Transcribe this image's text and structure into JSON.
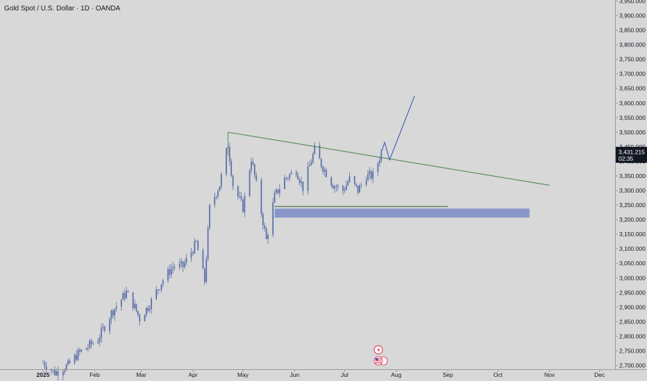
{
  "header": {
    "symbol_title": "Gold Spot / U.S. Dollar · 1D · OANDA"
  },
  "price_scale": {
    "current_price": "3,431.215",
    "countdown": "02:35"
  },
  "colors": {
    "background": "#d8d8d8",
    "candle_body": "#5b6fa8",
    "trendline": "#4c8a4c",
    "support_line": "#2e5a2e",
    "zone_fill": "#7b8bc8",
    "projection": "#3a56b8",
    "price_tag_bg": "#131722"
  },
  "chart_data": {
    "type": "candlestick",
    "title": "Gold Spot / U.S. Dollar · 1D · OANDA",
    "x_axis": {
      "tick_labels": [
        "2025",
        "Feb",
        "Mar",
        "Apr",
        "May",
        "Jun",
        "Jul",
        "Aug",
        "Sep",
        "Oct",
        "Nov",
        "Dec"
      ],
      "tick_dates": [
        "2025-01-01",
        "2025-02-01",
        "2025-03-01",
        "2025-04-01",
        "2025-05-01",
        "2025-06-01",
        "2025-07-01",
        "2025-08-01",
        "2025-09-01",
        "2025-10-01",
        "2025-11-01",
        "2025-12-01"
      ]
    },
    "y_axis": {
      "range": [
        2700,
        3950
      ],
      "tick_values": [
        2700,
        2750,
        2800,
        2850,
        2900,
        2950,
        3000,
        3050,
        3100,
        3150,
        3200,
        3250,
        3300,
        3350,
        3400,
        3450,
        3500,
        3550,
        3600,
        3650,
        3700,
        3750,
        3800,
        3850,
        3900,
        3950
      ],
      "tick_labels": [
        "2,700.000",
        "2,750.000",
        "2,800.000",
        "2,850.000",
        "2,900.000",
        "2,950.000",
        "3,000.000",
        "3,050.000",
        "3,100.000",
        "3,150.000",
        "3,200.000",
        "3,250.000",
        "3,300.000",
        "3,350.000",
        "3,400.000",
        "3,450.000",
        "3,500.000",
        "3,550.000",
        "3,600.000",
        "3,650.000",
        "3,700.000",
        "3,750.000",
        "3,800.000",
        "3,850.000",
        "3,900.000",
        "3,950.000"
      ]
    },
    "closes": [
      {
        "date": "2025-01-01",
        "close": 2710
      },
      {
        "date": "2025-01-08",
        "close": 2675
      },
      {
        "date": "2025-01-16",
        "close": 2700
      },
      {
        "date": "2025-01-22",
        "close": 2740
      },
      {
        "date": "2025-02-03",
        "close": 2790
      },
      {
        "date": "2025-02-11",
        "close": 2880
      },
      {
        "date": "2025-02-20",
        "close": 2950
      },
      {
        "date": "2025-02-25",
        "close": 2900
      },
      {
        "date": "2025-02-28",
        "close": 2860
      },
      {
        "date": "2025-03-06",
        "close": 2910
      },
      {
        "date": "2025-03-13",
        "close": 2985
      },
      {
        "date": "2025-03-20",
        "close": 3040
      },
      {
        "date": "2025-03-26",
        "close": 3040
      },
      {
        "date": "2025-04-03",
        "close": 3120
      },
      {
        "date": "2025-04-08",
        "close": 2990
      },
      {
        "date": "2025-04-11",
        "close": 3240
      },
      {
        "date": "2025-04-17",
        "close": 3320
      },
      {
        "date": "2025-04-22",
        "close": 3460
      },
      {
        "date": "2025-04-25",
        "close": 3320
      },
      {
        "date": "2025-05-01",
        "close": 3240
      },
      {
        "date": "2025-05-06",
        "close": 3410
      },
      {
        "date": "2025-05-09",
        "close": 3320
      },
      {
        "date": "2025-05-15",
        "close": 3130
      },
      {
        "date": "2025-05-20",
        "close": 3280
      },
      {
        "date": "2025-05-26",
        "close": 3340
      },
      {
        "date": "2025-06-02",
        "close": 3370
      },
      {
        "date": "2025-06-06",
        "close": 3310
      },
      {
        "date": "2025-06-13",
        "close": 3440
      },
      {
        "date": "2025-06-17",
        "close": 3390
      },
      {
        "date": "2025-06-24",
        "close": 3320
      },
      {
        "date": "2025-06-30",
        "close": 3300
      },
      {
        "date": "2025-07-04",
        "close": 3340
      },
      {
        "date": "2025-07-09",
        "close": 3300
      },
      {
        "date": "2025-07-14",
        "close": 3350
      },
      {
        "date": "2025-07-18",
        "close": 3350
      },
      {
        "date": "2025-07-21",
        "close": 3395
      },
      {
        "date": "2025-07-23",
        "close": 3431
      }
    ],
    "annotations": {
      "descending_trendline": [
        {
          "date": "2025-04-22",
          "price": 3500
        },
        {
          "date": "2025-11-01",
          "price": 3318
        }
      ],
      "support_line": {
        "start": "2025-05-20",
        "end": "2025-09-01",
        "price": 3245
      },
      "demand_zone": {
        "start": "2025-05-20",
        "end": "2025-10-20",
        "top": 3238,
        "bottom": 3207
      },
      "projection_path": [
        {
          "date": "2025-07-23",
          "price": 3431
        },
        {
          "date": "2025-07-25",
          "price": 3465
        },
        {
          "date": "2025-07-28",
          "price": 3405
        },
        {
          "date": "2025-08-12",
          "price": 3625
        }
      ]
    },
    "grid": false,
    "legend": "none"
  }
}
